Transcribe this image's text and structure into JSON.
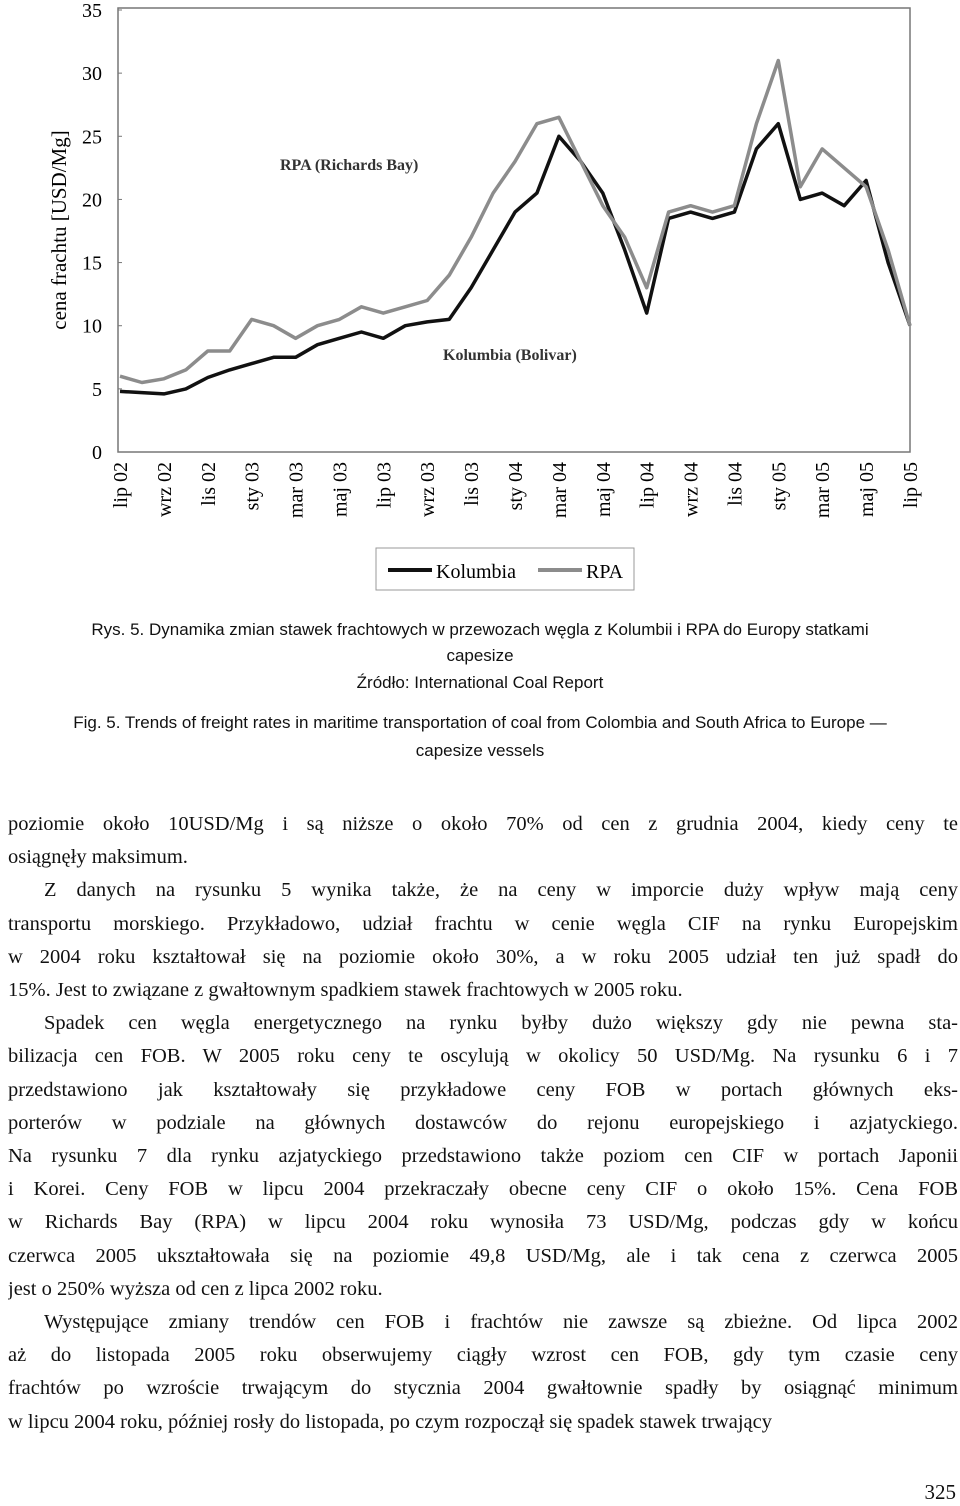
{
  "chart_data": {
    "type": "line",
    "ylabel": "cena frachtu [USD/Mg]",
    "categories": [
      "lip 02",
      null,
      "wrz 02",
      null,
      "lis 02",
      null,
      "sty 03",
      null,
      "mar 03",
      null,
      "maj 03",
      null,
      "lip 03",
      null,
      "wrz 03",
      null,
      "lis 03",
      null,
      "sty 04",
      null,
      "mar 04",
      null,
      "maj 04",
      null,
      "lip 04",
      null,
      "wrz 04",
      null,
      "lis 04",
      null,
      "sty 05",
      null,
      "mar 05",
      null,
      "maj 05",
      null,
      "lip 05"
    ],
    "series": [
      {
        "name": "Kolumbia",
        "color": "#111111",
        "values": [
          4.8,
          4.7,
          4.6,
          5.0,
          5.9,
          6.5,
          7.0,
          7.5,
          7.5,
          8.5,
          9.0,
          9.5,
          9.0,
          10.0,
          10.3,
          10.5,
          13.0,
          16.0,
          19.0,
          20.5,
          25.0,
          23.0,
          20.5,
          16.0,
          11.0,
          18.5,
          19.0,
          18.5,
          19.0,
          24.0,
          26.0,
          20.0,
          20.5,
          19.5,
          21.5,
          15.0,
          10.0
        ]
      },
      {
        "name": "RPA",
        "color": "#8c8c8c",
        "values": [
          6.0,
          5.5,
          5.8,
          6.5,
          8.0,
          8.0,
          10.5,
          10.0,
          9.0,
          10.0,
          10.5,
          11.5,
          11.0,
          11.5,
          12.0,
          14.0,
          17.0,
          20.5,
          23.0,
          26.0,
          26.5,
          23.0,
          19.5,
          17.0,
          13.0,
          19.0,
          19.5,
          19.0,
          19.5,
          26.0,
          31.0,
          21.0,
          24.0,
          22.5,
          21.0,
          16.0,
          10.0
        ]
      }
    ],
    "ylim": [
      0,
      35
    ],
    "yticks": [
      0,
      5,
      10,
      15,
      20,
      25,
      30,
      35
    ],
    "annotations": [
      "RPA (Richards Bay)",
      "Kolumbia (Bolivar)"
    ]
  },
  "caption": {
    "pl": [
      "Rys. 5. Dynamika zmian stawek frachtowych w przewozach węgla z Kolumbii i RPA do Europy statkami",
      "capesize"
    ],
    "source": "Źródło: International Coal Report",
    "en": [
      "Fig. 5. Trends of freight rates in maritime transportation of coal from Colombia and South Africa to Europe —",
      "capesize vessels"
    ]
  },
  "body": {
    "paragraphs": [
      [
        "poziomie około 10USD/Mg i są niższe o około 70% od cen z grudnia 2004, kiedy ceny te",
        "osiągnęły maksimum."
      ],
      [
        "Z danych na rysunku 5 wynika także, że na ceny w imporcie duży wpływ mają ceny",
        "transportu morskiego. Przykładowo, udział frachtu w cenie węgla CIF na rynku Europejskim",
        "w 2004 roku kształtował się na poziomie około 30%, a w roku 2005 udział ten już spadł do",
        "15%. Jest to związane z gwałtownym spadkiem stawek frachtowych w 2005 roku."
      ],
      [
        "Spadek cen węgla energetycznego na rynku byłby dużo większy gdy nie pewna sta-",
        "bilizacja cen FOB. W 2005 roku ceny te oscylują w okolicy 50 USD/Mg. Na rysunku 6 i 7",
        "przedstawiono jak kształtowały się przykładowe ceny FOB w portach głównych eks-",
        "porterów w podziale na głównych dostawców do rejonu europejskiego i azjatyckiego.",
        "Na rysunku 7 dla rynku azjatyckiego przedstawiono także poziom cen CIF w portach Japonii",
        "i Korei. Ceny FOB w lipcu 2004 przekraczały obecne ceny CIF o około 15%. Cena FOB",
        "w Richards Bay (RPA) w lipcu 2004 roku wynosiła 73 USD/Mg, podczas gdy w końcu",
        "czerwca 2005 ukształtowała się na poziomie 49,8 USD/Mg, ale i tak cena z czerwca 2005",
        "jest o 250% wyższa od cen z lipca 2002 roku."
      ],
      [
        "Występujące zmiany trendów cen FOB i frachtów nie zawsze są zbieżne. Od lipca 2002",
        "aż do listopada 2005 roku obserwujemy ciągły wzrost cen FOB, gdy tym czasie ceny",
        "frachtów po wzroście trwającym do stycznia 2004 gwałtownie spadły by osiągnąć minimum",
        "w lipcu 2004 roku, później rosły do listopada, po czym rozpoczął się spadek stawek trwający"
      ]
    ]
  },
  "page_number": "325"
}
